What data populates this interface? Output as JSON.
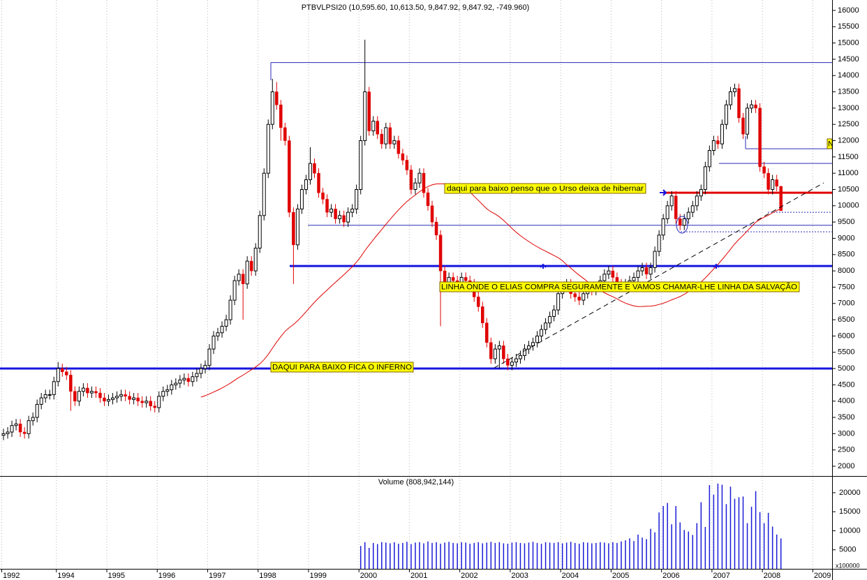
{
  "chart_data": {
    "type": "candlestick",
    "title": "PTBVLPSI20 (10,595.60, 10,613.50, 9,847.92, 9,847.92, -749.960)",
    "volume_label": "Volume (808,942,144)",
    "volume_unit": "x100000",
    "annotations": [
      "daqui para baixo penso que o Urso deixa de hibernar",
      "LINHA ONDE O ELIAS COMPRA SEGURAMENTE E VAMOS CHAMAR-LHE LINHA DA SALVAÇÃO",
      "DAQUI PARA BAIXO FICA O INFERNO",
      "N"
    ],
    "categories": [
      "1992",
      null,
      null,
      null,
      null,
      null,
      null,
      null,
      null,
      null,
      null,
      null,
      null,
      "1994",
      null,
      null,
      null,
      null,
      null,
      null,
      null,
      null,
      null,
      null,
      null,
      "1995",
      null,
      null,
      null,
      null,
      null,
      null,
      null,
      null,
      null,
      null,
      null,
      "1996",
      null,
      null,
      null,
      null,
      null,
      null,
      null,
      null,
      null,
      null,
      null,
      "1997",
      null,
      null,
      null,
      null,
      null,
      null,
      null,
      null,
      null,
      null,
      null,
      "1998",
      null,
      null,
      null,
      null,
      null,
      null,
      null,
      null,
      null,
      null,
      null,
      "1999",
      null,
      null,
      null,
      null,
      null,
      null,
      null,
      null,
      null,
      null,
      null,
      "2000",
      null,
      null,
      null,
      null,
      null,
      null,
      null,
      null,
      null,
      null,
      null,
      "2001",
      null,
      null,
      null,
      null,
      null,
      null,
      null,
      null,
      null,
      null,
      null,
      "2002",
      null,
      null,
      null,
      null,
      null,
      null,
      null,
      null,
      null,
      null,
      null,
      "2003",
      null,
      null,
      null,
      null,
      null,
      null,
      null,
      null,
      null,
      null,
      null,
      "2004",
      null,
      null,
      null,
      null,
      null,
      null,
      null,
      null,
      null,
      null,
      null,
      "2005",
      null,
      null,
      null,
      null,
      null,
      null,
      null,
      null,
      null,
      null,
      null,
      "2006",
      null,
      null,
      null,
      null,
      null,
      null,
      null,
      null,
      null,
      null,
      null,
      "2007",
      null,
      null,
      null,
      null,
      null,
      null,
      null,
      null,
      null,
      null,
      null,
      "2008",
      null,
      null,
      null,
      null,
      null,
      null,
      null,
      null,
      null,
      null,
      null,
      "2009",
      null,
      null,
      null,
      null
    ],
    "open": [
      2950,
      3000,
      3050,
      3250,
      3300,
      3050,
      3000,
      3400,
      3500,
      3900,
      4100,
      4200,
      4200,
      4600,
      5000,
      4900,
      4800,
      4300,
      4000,
      4300,
      4400,
      4250,
      4300,
      4250,
      4100,
      4000,
      4050,
      4100,
      4150,
      4200,
      4150,
      4050,
      4100,
      4000,
      3950,
      4000,
      3850,
      3800,
      4150,
      4300,
      4350,
      4500,
      4550,
      4650,
      4700,
      4600,
      4750,
      4850,
      5000,
      5100,
      5600,
      6000,
      6100,
      6300,
      6500,
      7100,
      7700,
      7900,
      7600,
      8300,
      8000,
      8700,
      9700,
      11000,
      12500,
      13500,
      13100,
      12400,
      12000,
      9800,
      8800,
      9900,
      10500,
      10800,
      11300,
      11000,
      10400,
      10200,
      9800,
      9900,
      9600,
      9700,
      9500,
      9800,
      9900,
      10500,
      12000,
      13500,
      12300,
      12600,
      12200,
      11900,
      12400,
      11900,
      12000,
      11600,
      11400,
      11100,
      10500,
      10700,
      11000,
      10400,
      10000,
      9500,
      9100,
      8000,
      7600,
      7800,
      7700,
      7600,
      7800,
      7700,
      7600,
      7200,
      6900,
      6400,
      5800,
      5300,
      5600,
      5700,
      5300,
      5100,
      5200,
      5300,
      5400,
      5600,
      5700,
      5800,
      6000,
      6200,
      6400,
      6600,
      6800,
      7300,
      7500,
      7600,
      7300,
      7200,
      7100,
      7300,
      7500,
      7400,
      7500,
      7700,
      7900,
      8000,
      7800,
      7600,
      7500,
      7600,
      7700,
      7800,
      8000,
      8100,
      7900,
      8100,
      8600,
      9100,
      9600,
      10000,
      10300,
      9600,
      9400,
      9600,
      9800,
      10000,
      10300,
      10500,
      11200,
      11700,
      12000,
      11900,
      12500,
      13100,
      13500,
      13600,
      12700,
      12200,
      13000,
      13100,
      13000,
      11200,
      11000,
      10500,
      10800,
      10596,
      null,
      null,
      null,
      null,
      null,
      null,
      null,
      null,
      null,
      null,
      null,
      null
    ],
    "high": [
      3150,
      3200,
      3400,
      3450,
      3450,
      3200,
      3550,
      3650,
      4050,
      4250,
      4350,
      4350,
      4750,
      5200,
      5150,
      5050,
      4950,
      4450,
      4450,
      4550,
      4550,
      4450,
      4450,
      4400,
      4250,
      4200,
      4250,
      4300,
      4350,
      4350,
      4300,
      4250,
      4250,
      4150,
      4150,
      4150,
      4000,
      4300,
      4450,
      4500,
      4650,
      4700,
      4800,
      4850,
      4850,
      4900,
      5000,
      5150,
      5250,
      5750,
      6150,
      6250,
      6450,
      6650,
      7250,
      7850,
      8050,
      8050,
      8450,
      8450,
      8850,
      9850,
      11150,
      12650,
      13900,
      13800,
      13250,
      12550,
      12150,
      9950,
      10050,
      10650,
      10950,
      11800,
      11450,
      11150,
      10550,
      10350,
      10050,
      10050,
      9850,
      9850,
      9950,
      10050,
      10650,
      12150,
      15100,
      13650,
      12750,
      12750,
      12350,
      12550,
      12550,
      12150,
      12150,
      11750,
      11550,
      11250,
      10850,
      11150,
      11150,
      10550,
      10150,
      9650,
      9250,
      8150,
      7950,
      7950,
      7850,
      7950,
      7950,
      7850,
      7750,
      7350,
      7050,
      6550,
      5950,
      5750,
      5850,
      5850,
      5450,
      5350,
      5450,
      5550,
      5750,
      5850,
      5950,
      6150,
      6350,
      6550,
      6750,
      6950,
      7450,
      7650,
      7750,
      7750,
      7450,
      7350,
      7450,
      7650,
      7650,
      7650,
      7850,
      8050,
      8150,
      8150,
      7950,
      7750,
      7750,
      7850,
      7950,
      8150,
      8250,
      8250,
      8250,
      8750,
      9250,
      9750,
      10150,
      10450,
      10450,
      9750,
      9750,
      9950,
      10150,
      10450,
      10650,
      11350,
      11850,
      12150,
      12150,
      12650,
      13250,
      13650,
      13750,
      13750,
      12850,
      13150,
      13250,
      13250,
      13150,
      11350,
      11150,
      10950,
      10950,
      10614,
      null,
      null,
      null,
      null,
      null,
      null,
      null,
      null,
      null,
      null,
      null,
      null
    ],
    "low": [
      2800,
      2850,
      2900,
      3100,
      2900,
      2850,
      2850,
      3250,
      3350,
      3750,
      3950,
      4050,
      4050,
      4450,
      4750,
      4650,
      3700,
      3850,
      3850,
      4150,
      4100,
      4100,
      4100,
      3950,
      3850,
      3850,
      3900,
      3950,
      4000,
      4000,
      3900,
      3900,
      3850,
      3800,
      3800,
      3700,
      3650,
      3650,
      4000,
      4150,
      4200,
      4350,
      4400,
      4500,
      4450,
      4450,
      4600,
      4700,
      4850,
      4950,
      5450,
      5850,
      5950,
      6150,
      6350,
      6950,
      7550,
      6500,
      7450,
      7850,
      7850,
      8550,
      9550,
      10850,
      12350,
      12950,
      12000,
      11850,
      9650,
      7600,
      8650,
      9750,
      10350,
      10650,
      10850,
      10250,
      10050,
      9650,
      9650,
      9450,
      9450,
      9350,
      9350,
      9650,
      9750,
      10350,
      11850,
      12150,
      12150,
      12050,
      11750,
      11750,
      11750,
      11750,
      11450,
      11250,
      10950,
      10350,
      10350,
      10550,
      10250,
      9850,
      9350,
      8950,
      6300,
      7450,
      7450,
      7550,
      7450,
      7450,
      7550,
      7450,
      7050,
      6750,
      6250,
      5650,
      5150,
      5150,
      5000,
      5150,
      4950,
      4950,
      5050,
      5150,
      5250,
      5450,
      5550,
      5650,
      5850,
      6050,
      6250,
      6450,
      6650,
      7150,
      7350,
      7150,
      7050,
      6950,
      6950,
      7150,
      7250,
      7250,
      7350,
      7550,
      7750,
      7650,
      7450,
      7350,
      7350,
      7450,
      7550,
      7650,
      7850,
      7750,
      7750,
      7950,
      8450,
      8950,
      9450,
      9850,
      9450,
      9250,
      9250,
      9450,
      9650,
      9850,
      10150,
      10350,
      11050,
      11550,
      11750,
      11750,
      12350,
      12950,
      13350,
      12550,
      12050,
      12050,
      12850,
      12850,
      11050,
      10850,
      10350,
      10350,
      10450,
      9848,
      null,
      null,
      null,
      null,
      null,
      null,
      null,
      null,
      null,
      null,
      null,
      null
    ],
    "close": [
      3000,
      3050,
      3250,
      3300,
      3050,
      3000,
      3400,
      3500,
      3900,
      4100,
      4200,
      4200,
      4600,
      5000,
      4900,
      4800,
      4300,
      4000,
      4300,
      4400,
      4250,
      4300,
      4250,
      4100,
      4000,
      4050,
      4100,
      4150,
      4200,
      4150,
      4050,
      4100,
      4000,
      3950,
      4000,
      3850,
      3800,
      4150,
      4300,
      4350,
      4500,
      4550,
      4650,
      4700,
      4600,
      4750,
      4850,
      5000,
      5100,
      5600,
      6000,
      6100,
      6300,
      6500,
      7100,
      7700,
      7900,
      7600,
      8300,
      8000,
      8700,
      9700,
      11000,
      12500,
      13500,
      13100,
      12400,
      12000,
      9800,
      8800,
      9900,
      10500,
      10800,
      11300,
      11000,
      10400,
      10200,
      9800,
      9900,
      9600,
      9700,
      9500,
      9800,
      9900,
      10500,
      12000,
      13500,
      12300,
      12600,
      12200,
      11900,
      12400,
      11900,
      12000,
      11600,
      11400,
      11100,
      10500,
      10700,
      11000,
      10400,
      10000,
      9500,
      9100,
      8000,
      7600,
      7800,
      7700,
      7600,
      7800,
      7700,
      7600,
      7200,
      6900,
      6400,
      5800,
      5300,
      5600,
      5700,
      5300,
      5100,
      5200,
      5300,
      5400,
      5600,
      5700,
      5800,
      6000,
      6200,
      6400,
      6600,
      6800,
      7300,
      7500,
      7600,
      7300,
      7200,
      7100,
      7300,
      7500,
      7400,
      7500,
      7700,
      7900,
      8000,
      7800,
      7600,
      7500,
      7600,
      7700,
      7800,
      8000,
      8100,
      7900,
      8100,
      8600,
      9100,
      9600,
      10000,
      10300,
      9600,
      9400,
      9600,
      9800,
      10000,
      10300,
      10500,
      11200,
      11700,
      12000,
      11900,
      12500,
      13100,
      13500,
      13600,
      12700,
      12200,
      13000,
      13100,
      13000,
      11200,
      11000,
      10500,
      10800,
      10600,
      9848,
      null,
      null,
      null,
      null,
      null,
      null,
      null,
      null,
      null,
      null,
      null,
      null
    ],
    "volume": [
      null,
      null,
      null,
      null,
      null,
      null,
      null,
      null,
      null,
      null,
      null,
      null,
      null,
      null,
      null,
      null,
      null,
      null,
      null,
      null,
      null,
      null,
      null,
      null,
      null,
      null,
      null,
      null,
      null,
      null,
      null,
      null,
      null,
      null,
      null,
      null,
      null,
      null,
      null,
      null,
      null,
      null,
      null,
      null,
      null,
      null,
      null,
      null,
      null,
      null,
      null,
      null,
      null,
      null,
      null,
      null,
      null,
      null,
      null,
      null,
      null,
      null,
      null,
      null,
      null,
      null,
      null,
      null,
      null,
      null,
      null,
      null,
      null,
      null,
      null,
      null,
      null,
      null,
      null,
      null,
      null,
      null,
      null,
      null,
      null,
      6000,
      7000,
      5500,
      6800,
      6500,
      7000,
      6900,
      6700,
      7000,
      6600,
      6800,
      7100,
      6500,
      6900,
      7000,
      6700,
      7200,
      6800,
      7000,
      6600,
      6900,
      7100,
      6800,
      6700,
      7000,
      6900,
      6600,
      6800,
      7000,
      6700,
      6900,
      7100,
      6800,
      7000,
      6700,
      6600,
      6900,
      7000,
      6800,
      6700,
      6900,
      7100,
      6800,
      6600,
      7000,
      6900,
      6800,
      7000,
      6700,
      6900,
      7100,
      6800,
      6600,
      7000,
      6900,
      6700,
      6800,
      7000,
      6900,
      6700,
      7000,
      6800,
      7200,
      7500,
      8000,
      7300,
      9000,
      8200,
      7800,
      10500,
      9600,
      14800,
      16500,
      17300,
      11700,
      16500,
      12200,
      10200,
      9800,
      8900,
      12000,
      17500,
      11000,
      22000,
      19500,
      22400,
      22100,
      17000,
      21600,
      18400,
      18800,
      19000,
      12000,
      16300,
      20400,
      14900,
      12000,
      14700,
      11100,
      9000,
      8000,
      null,
      null,
      null,
      null,
      null,
      null,
      null,
      null,
      null,
      null,
      null,
      null
    ],
    "up_color": "#ffffff",
    "down_color": "#e00000",
    "volume_color": "#1a1ad8",
    "ma_color": "#e00000",
    "ylim": [
      1700,
      16320
    ],
    "yticks": [
      2000,
      2500,
      3000,
      3500,
      4000,
      4500,
      5000,
      5500,
      6000,
      6500,
      7000,
      7500,
      8000,
      8500,
      9000,
      9500,
      10000,
      10500,
      11000,
      11500,
      12000,
      12500,
      13000,
      13500,
      14000,
      14500,
      15000,
      15500,
      16000
    ],
    "volume_ylim": [
      0,
      24200
    ],
    "volume_yticks": [
      5000,
      10000,
      15000,
      20000
    ],
    "levels": [
      {
        "value": 14400,
        "color": "#2a2ab8"
      },
      {
        "value": 9400,
        "color": "#2a2ab8"
      },
      {
        "value": 5000,
        "color": "#1515e0"
      },
      {
        "value": 8150,
        "color": "#1515e0"
      },
      {
        "value": 10400,
        "color": "#e00000"
      },
      {
        "value": 11750,
        "color": "#2a2ab8"
      },
      {
        "value": 11300,
        "color": "#2a2ab8"
      },
      {
        "value": 9800,
        "color": "#2a2ab8"
      },
      {
        "value": 9200,
        "color": "#2a2ab8"
      }
    ],
    "grid": true
  }
}
